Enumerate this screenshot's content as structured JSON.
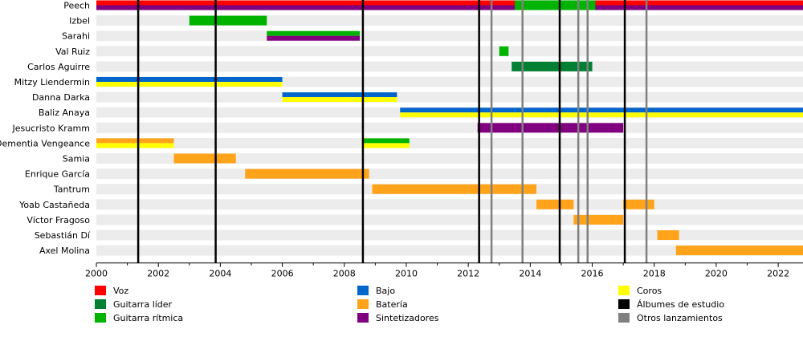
{
  "chart_data": {
    "type": "timeline",
    "title": "",
    "x_axis": {
      "range": [
        2000,
        2022.8
      ],
      "ticks": [
        2000,
        2002,
        2004,
        2006,
        2008,
        2010,
        2012,
        2014,
        2016,
        2018,
        2020,
        2022
      ]
    },
    "roles": {
      "voz": {
        "label": "Voz",
        "color": "#ff0000"
      },
      "guitarra_lider": {
        "label": "Guitarra líder",
        "color": "#008033"
      },
      "guitarra_ritmica": {
        "label": "Guitarra rítmica",
        "color": "#00b300"
      },
      "bajo": {
        "label": "Bajo",
        "color": "#0066cc"
      },
      "bateria": {
        "label": "Batería",
        "color": "#ffa31a"
      },
      "sintetizadores": {
        "label": "Sintetizadores",
        "color": "#800080"
      },
      "coros": {
        "label": "Coros",
        "color": "#ffff00"
      },
      "albumes_estudio": {
        "label": "Álbumes de estudio",
        "color": "#000000"
      },
      "otros_lanzamientos": {
        "label": "Otros lanzamientos",
        "color": "#808080"
      }
    },
    "legend_order": [
      [
        "voz",
        "guitarra_lider",
        "guitarra_ritmica"
      ],
      [
        "bajo",
        "bateria",
        "sintetizadores"
      ],
      [
        "coros",
        "albumes_estudio",
        "otros_lanzamientos"
      ]
    ],
    "members": [
      {
        "name": "Peech",
        "spans": [
          {
            "start": 2000,
            "end": 2022.8,
            "roles": [
              "voz",
              "sintetizadores"
            ]
          },
          {
            "start": 2013.5,
            "end": 2016.1,
            "roles": [
              "guitarra_ritmica"
            ]
          }
        ]
      },
      {
        "name": "Izbel",
        "spans": [
          {
            "start": 2003.0,
            "end": 2005.5,
            "roles": [
              "guitarra_ritmica"
            ]
          }
        ]
      },
      {
        "name": "Sarahi",
        "spans": [
          {
            "start": 2005.5,
            "end": 2008.5,
            "roles": [
              "guitarra_ritmica",
              "sintetizadores"
            ]
          }
        ]
      },
      {
        "name": "Val Ruiz",
        "spans": [
          {
            "start": 2013.0,
            "end": 2013.3,
            "roles": [
              "guitarra_ritmica"
            ]
          }
        ]
      },
      {
        "name": "Carlos Aguirre",
        "spans": [
          {
            "start": 2013.4,
            "end": 2016.0,
            "roles": [
              "guitarra_lider"
            ]
          }
        ]
      },
      {
        "name": "Mitzy Liendermin",
        "spans": [
          {
            "start": 2000,
            "end": 2006.0,
            "roles": [
              "bajo",
              "coros"
            ]
          }
        ]
      },
      {
        "name": "Danna Darka",
        "spans": [
          {
            "start": 2006.0,
            "end": 2009.7,
            "roles": [
              "bajo",
              "coros"
            ]
          }
        ]
      },
      {
        "name": "Baliz Anaya",
        "spans": [
          {
            "start": 2009.8,
            "end": 2022.8,
            "roles": [
              "bajo",
              "coros"
            ]
          }
        ]
      },
      {
        "name": "Jesucristo Kramm",
        "spans": [
          {
            "start": 2012.3,
            "end": 2017.0,
            "roles": [
              "sintetizadores"
            ]
          }
        ]
      },
      {
        "name": "Dementia Vengeance",
        "spans": [
          {
            "start": 2000,
            "end": 2002.5,
            "roles": [
              "bateria",
              "coros"
            ]
          },
          {
            "start": 2008.6,
            "end": 2010.1,
            "roles": [
              "guitarra_ritmica",
              "coros"
            ]
          }
        ]
      },
      {
        "name": "Samia",
        "spans": [
          {
            "start": 2002.5,
            "end": 2004.5,
            "roles": [
              "bateria"
            ]
          }
        ]
      },
      {
        "name": "Enrique García",
        "spans": [
          {
            "start": 2004.8,
            "end": 2008.8,
            "roles": [
              "bateria"
            ]
          }
        ]
      },
      {
        "name": "Tantrum",
        "spans": [
          {
            "start": 2008.9,
            "end": 2014.2,
            "roles": [
              "bateria"
            ]
          }
        ]
      },
      {
        "name": "Yoab Castañeda",
        "spans": [
          {
            "start": 2014.2,
            "end": 2015.4,
            "roles": [
              "bateria"
            ]
          },
          {
            "start": 2017.0,
            "end": 2018.0,
            "roles": [
              "bateria"
            ]
          }
        ]
      },
      {
        "name": "Víctor Fragoso",
        "spans": [
          {
            "start": 2015.4,
            "end": 2017.0,
            "roles": [
              "bateria"
            ]
          }
        ]
      },
      {
        "name": "Sebastián Dí",
        "spans": [
          {
            "start": 2018.1,
            "end": 2018.8,
            "roles": [
              "bateria"
            ]
          }
        ]
      },
      {
        "name": "Axel Molina",
        "spans": [
          {
            "start": 2018.7,
            "end": 2022.8,
            "roles": [
              "bateria"
            ]
          }
        ]
      }
    ],
    "studio_albums": [
      2001.35,
      2003.85,
      2008.6,
      2012.35,
      2014.95,
      2017.05
    ],
    "other_releases": [
      2012.75,
      2013.75,
      2015.55,
      2015.85,
      2017.75
    ]
  }
}
